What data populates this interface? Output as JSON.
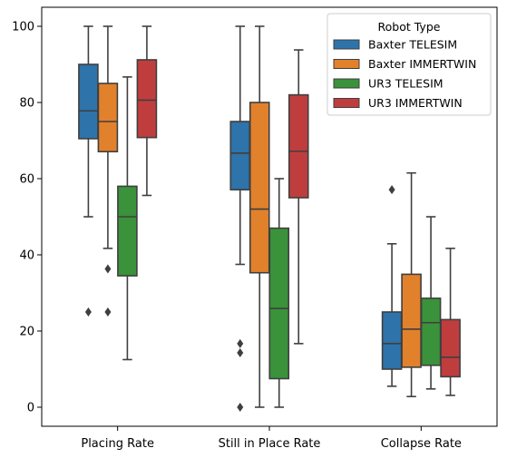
{
  "chart_data": {
    "type": "box",
    "title": "",
    "xlabel": "",
    "ylabel": "",
    "ylim": [
      -5,
      105
    ],
    "yticks": [
      0,
      20,
      40,
      60,
      80,
      100
    ],
    "categories": [
      "Placing Rate",
      "Still in Place Rate",
      "Collapse Rate"
    ],
    "legend": {
      "title": "Robot Type",
      "placement": "top-right"
    },
    "grid": false,
    "series": [
      {
        "name": "Baxter TELESIM",
        "color": "#2e73a9",
        "boxes": [
          {
            "whisker_low": 50,
            "q1": 70.5,
            "median": 77.8,
            "q3": 90,
            "whisker_high": 100,
            "outliers": [
              25
            ]
          },
          {
            "whisker_low": 37.5,
            "q1": 57.1,
            "median": 66.7,
            "q3": 75,
            "whisker_high": 100,
            "outliers": [
              16.7,
              14.3,
              0
            ]
          },
          {
            "whisker_low": 5.5,
            "q1": 10,
            "median": 16.7,
            "q3": 25,
            "whisker_high": 42.9,
            "outliers": [
              57.1
            ]
          }
        ]
      },
      {
        "name": "Baxter IMMERTWIN",
        "color": "#e1812c",
        "boxes": [
          {
            "whisker_low": 41.7,
            "q1": 67.1,
            "median": 75,
            "q3": 85,
            "whisker_high": 100,
            "outliers": [
              36.3,
              25
            ]
          },
          {
            "whisker_low": 0,
            "q1": 35.3,
            "median": 52,
            "q3": 80,
            "whisker_high": 100,
            "outliers": []
          },
          {
            "whisker_low": 2.8,
            "q1": 10.5,
            "median": 20.5,
            "q3": 34.9,
            "whisker_high": 61.5,
            "outliers": []
          }
        ]
      },
      {
        "name": "UR3 TELESIM",
        "color": "#3a923a",
        "boxes": [
          {
            "whisker_low": 12.5,
            "q1": 34.5,
            "median": 50,
            "q3": 58,
            "whisker_high": 86.7,
            "outliers": []
          },
          {
            "whisker_low": 0,
            "q1": 7.5,
            "median": 25.9,
            "q3": 47,
            "whisker_high": 60,
            "outliers": []
          },
          {
            "whisker_low": 4.8,
            "q1": 11,
            "median": 22.2,
            "q3": 28.6,
            "whisker_high": 50,
            "outliers": []
          }
        ]
      },
      {
        "name": "UR3 IMMERTWIN",
        "color": "#c03d3e",
        "boxes": [
          {
            "whisker_low": 55.6,
            "q1": 70.8,
            "median": 80.6,
            "q3": 91.2,
            "whisker_high": 100,
            "outliers": []
          },
          {
            "whisker_low": 16.7,
            "q1": 55,
            "median": 67.2,
            "q3": 82,
            "whisker_high": 93.8,
            "outliers": []
          },
          {
            "whisker_low": 3.1,
            "q1": 8,
            "median": 13.1,
            "q3": 23,
            "whisker_high": 41.7,
            "outliers": []
          }
        ]
      }
    ]
  }
}
